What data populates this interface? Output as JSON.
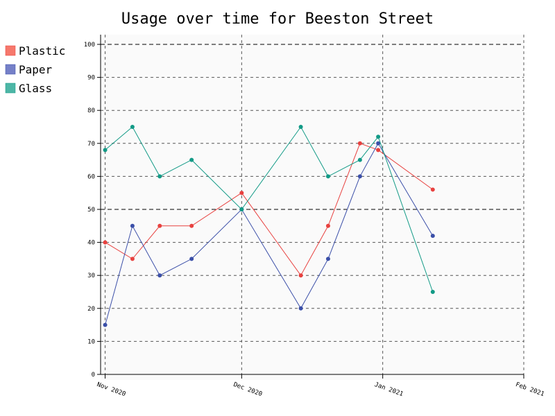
{
  "chart_data": {
    "type": "line",
    "title": "Usage over time for Beeston Street",
    "xlabel": "",
    "ylabel": "",
    "ylim": [
      0,
      100
    ],
    "yticks": [
      0,
      10,
      20,
      30,
      40,
      50,
      60,
      70,
      80,
      90,
      100
    ],
    "x_ticks": [
      {
        "date": "2020-11-01",
        "label": "Nov 2020"
      },
      {
        "date": "2020-12-01",
        "label": "Dec 2020"
      },
      {
        "date": "2021-01-01",
        "label": "Jan 2021"
      },
      {
        "date": "2021-02-01",
        "label": "Feb 2021"
      }
    ],
    "xlim": [
      "2020-10-31",
      "2021-02-01"
    ],
    "grid": true,
    "legend_position": "top-left",
    "series": [
      {
        "name": "Plastic",
        "color": "#e8413f",
        "legend_color": "#f6786c",
        "points": [
          {
            "x": "2020-11-01",
            "y": 40
          },
          {
            "x": "2020-11-07",
            "y": 35
          },
          {
            "x": "2020-11-13",
            "y": 45
          },
          {
            "x": "2020-11-20",
            "y": 45
          },
          {
            "x": "2020-12-01",
            "y": 55
          },
          {
            "x": "2020-12-14",
            "y": 30
          },
          {
            "x": "2020-12-20",
            "y": 45
          },
          {
            "x": "2020-12-27",
            "y": 70
          },
          {
            "x": "2020-12-31",
            "y": 68
          },
          {
            "x": "2021-01-12",
            "y": 56
          }
        ]
      },
      {
        "name": "Paper",
        "color": "#3b4fa8",
        "legend_color": "#7580c8",
        "points": [
          {
            "x": "2020-11-01",
            "y": 15
          },
          {
            "x": "2020-11-07",
            "y": 45
          },
          {
            "x": "2020-11-13",
            "y": 30
          },
          {
            "x": "2020-11-20",
            "y": 35
          },
          {
            "x": "2020-12-01",
            "y": 50
          },
          {
            "x": "2020-12-14",
            "y": 20
          },
          {
            "x": "2020-12-20",
            "y": 35
          },
          {
            "x": "2020-12-27",
            "y": 60
          },
          {
            "x": "2020-12-31",
            "y": 70
          },
          {
            "x": "2021-01-12",
            "y": 42
          }
        ]
      },
      {
        "name": "Glass",
        "color": "#129a86",
        "legend_color": "#4db6a6",
        "points": [
          {
            "x": "2020-11-01",
            "y": 68
          },
          {
            "x": "2020-11-07",
            "y": 75
          },
          {
            "x": "2020-11-13",
            "y": 60
          },
          {
            "x": "2020-11-20",
            "y": 65
          },
          {
            "x": "2020-12-01",
            "y": 50
          },
          {
            "x": "2020-12-14",
            "y": 75
          },
          {
            "x": "2020-12-20",
            "y": 60
          },
          {
            "x": "2020-12-27",
            "y": 65
          },
          {
            "x": "2020-12-31",
            "y": 72
          },
          {
            "x": "2021-01-12",
            "y": 25
          }
        ]
      }
    ]
  }
}
